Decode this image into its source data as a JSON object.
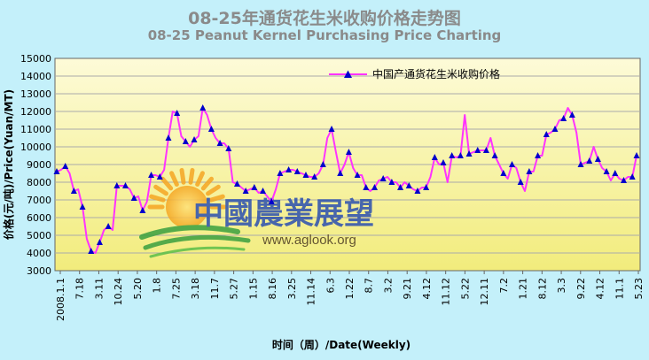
{
  "header": {
    "title_cn": "08-25年通货花生米收购价格走势图",
    "title_en": "08-25 Peanut Kernel Purchasing Price Charting"
  },
  "watermark": {
    "name_cn": "中國農業展望",
    "url": "www.aglook.org"
  },
  "colors": {
    "plot_bg_top": "#fdfbd8",
    "plot_bg_bottom": "#f2ec7c",
    "line": "#ff33ff",
    "marker": "#0000cc",
    "grid": "#aaaaaa"
  },
  "chart_data": {
    "type": "line",
    "title": "08-25 Peanut Kernel Purchasing Price Charting",
    "xlabel": "时间（周）/Date(Weekly)",
    "ylabel": "价格(元/吨)/Price(Yuan/MT)",
    "ylim": [
      3000,
      15000
    ],
    "yticks": [
      3000,
      4000,
      5000,
      6000,
      7000,
      8000,
      9000,
      10000,
      11000,
      12000,
      13000,
      14000,
      15000
    ],
    "xtick_labels": [
      "2008.1.1",
      "7.18",
      "3.11",
      "10.24",
      "5.20",
      "1.8",
      "7.25",
      "3.18",
      "11.7",
      "5.27",
      "1.15",
      "8.16",
      "3.25",
      "11.14",
      "6.3",
      "1.22",
      "8.7",
      "3.2",
      "9.21",
      "4.12",
      "11.12",
      "5.22",
      "12.11",
      "7.2",
      "1.21",
      "8.12",
      "3.3",
      "9.22",
      "4.12",
      "11.1",
      "5.23"
    ],
    "grid": true,
    "legend": "top-center",
    "series": [
      {
        "name": "中国产通货花生米收购价格",
        "values": [
          8600,
          8700,
          8900,
          8500,
          7500,
          7600,
          6600,
          4800,
          4100,
          4000,
          4600,
          5300,
          5500,
          5300,
          7800,
          7800,
          7800,
          7600,
          7100,
          7200,
          6400,
          6900,
          8400,
          8400,
          8300,
          8700,
          10500,
          12000,
          11900,
          10600,
          10300,
          10000,
          10400,
          10600,
          12200,
          11800,
          11000,
          10500,
          10200,
          10200,
          9900,
          8000,
          7900,
          7700,
          7500,
          7600,
          7700,
          7400,
          7500,
          7200,
          6900,
          7600,
          8500,
          8600,
          8700,
          8700,
          8600,
          8500,
          8400,
          8300,
          8300,
          8500,
          9000,
          10500,
          11000,
          9700,
          8500,
          9000,
          9700,
          8800,
          8400,
          8400,
          7700,
          7500,
          7700,
          8100,
          8200,
          8300,
          8000,
          8000,
          7700,
          8000,
          7800,
          7600,
          7500,
          7700,
          7700,
          8300,
          9400,
          9000,
          9100,
          8000,
          9500,
          9400,
          9500,
          11800,
          9600,
          9700,
          9800,
          9800,
          9800,
          10500,
          9500,
          9000,
          8500,
          8200,
          9000,
          8800,
          8000,
          7500,
          8600,
          8600,
          9500,
          9500,
          10700,
          10800,
          11000,
          11500,
          11600,
          12200,
          11800,
          10800,
          9000,
          9100,
          9200,
          10000,
          9300,
          8800,
          8600,
          8100,
          8500,
          8200,
          8100,
          8300,
          8300,
          9500
        ]
      }
    ]
  }
}
